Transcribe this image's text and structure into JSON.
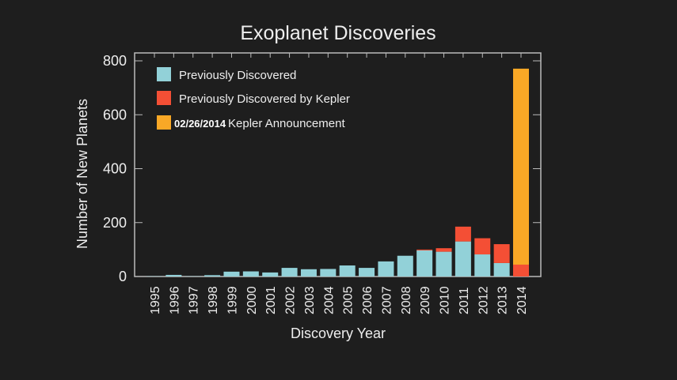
{
  "chart_data": {
    "type": "bar",
    "stacked": true,
    "title": "Exoplanet Discoveries",
    "xlabel": "Discovery Year",
    "ylabel": "Number of New Planets",
    "ylim": [
      0,
      800
    ],
    "yticks": [
      0,
      200,
      400,
      600,
      800
    ],
    "grid": false,
    "legend_placement": "top-left",
    "categories": [
      "1995",
      "1996",
      "1997",
      "1998",
      "1999",
      "2000",
      "2001",
      "2002",
      "2003",
      "2004",
      "2005",
      "2006",
      "2007",
      "2008",
      "2009",
      "2010",
      "2011",
      "2012",
      "2013",
      "2014"
    ],
    "series": [
      {
        "name": "Previously Discovered",
        "color": "#92d1d8",
        "values": [
          1,
          6,
          1,
          5,
          18,
          19,
          15,
          32,
          27,
          28,
          41,
          32,
          56,
          77,
          97,
          92,
          130,
          82,
          50,
          0
        ]
      },
      {
        "name": "Previously Discovered by Kepler",
        "color": "#f44f35",
        "values": [
          0,
          0,
          0,
          0,
          0,
          0,
          0,
          0,
          0,
          0,
          0,
          0,
          0,
          0,
          3,
          13,
          55,
          60,
          70,
          44
        ]
      },
      {
        "name": "Kepler Announcement",
        "legend_prefix": "02/26/2014",
        "color": "#f9a826",
        "values": [
          0,
          0,
          0,
          0,
          0,
          0,
          0,
          0,
          0,
          0,
          0,
          0,
          0,
          0,
          0,
          0,
          0,
          0,
          0,
          727
        ]
      }
    ]
  }
}
